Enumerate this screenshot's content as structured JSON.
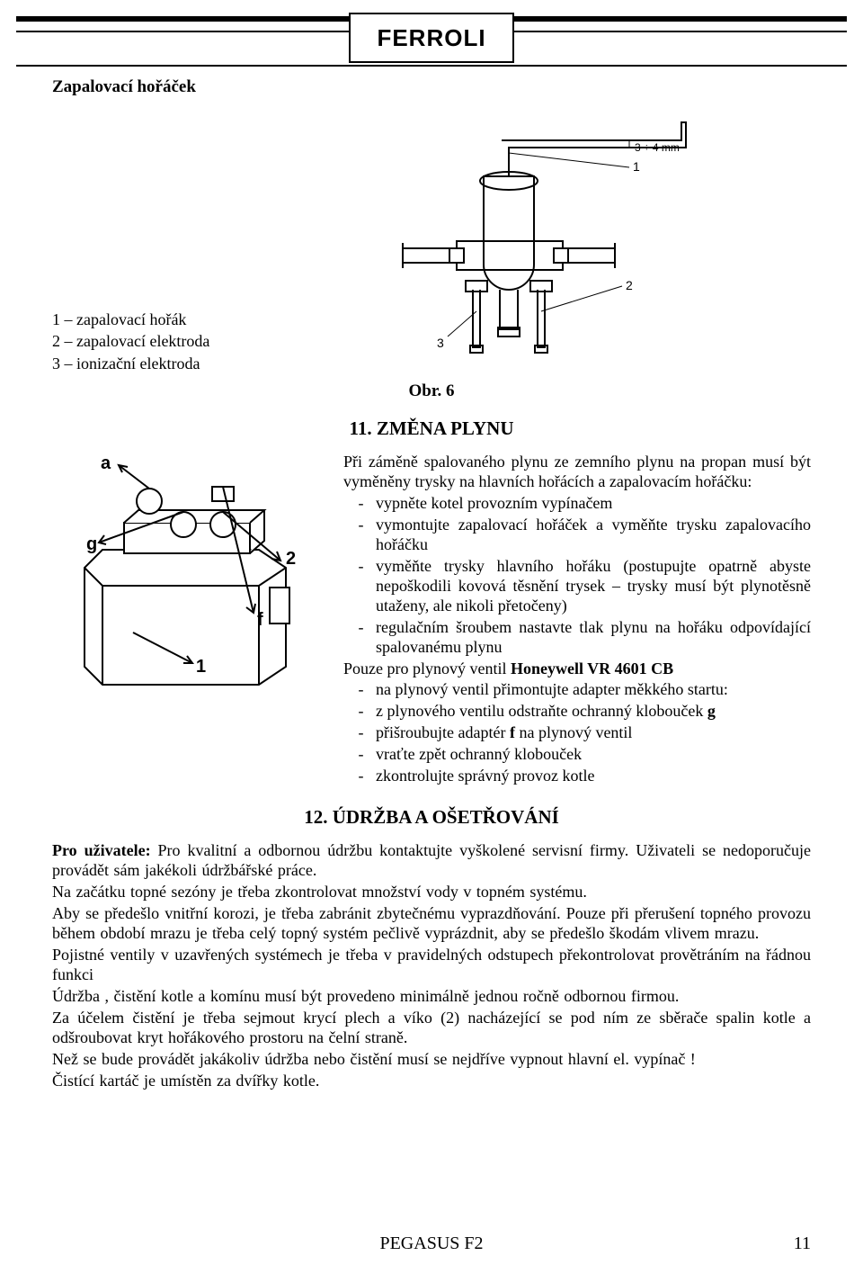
{
  "logo_text": "FERROLI",
  "heading_1": "Zapalovací hořáček",
  "legend_items": [
    "1 – zapalovací hořák",
    "2 – zapalovací elektroda",
    "3 – ionizační elektroda"
  ],
  "burner_diagram": {
    "labels": {
      "dim": "3 ÷ 4 mm",
      "one": "1",
      "two": "2",
      "three": "3"
    },
    "stroke": "#020202"
  },
  "fig_caption": "Obr. 6",
  "section_11": "11. ZMĚNA PLYNU",
  "valve_diagram": {
    "labels": {
      "a": "a",
      "g": "g",
      "two": "2",
      "f": "f",
      "one": "1"
    },
    "stroke": "#020202"
  },
  "section11_intro": "Při záměně spalovaného plynu ze zemního plynu na propan musí být vyměněny trysky na hlavních hořácích a zapalovacím hořáčku:",
  "section11_list1": [
    "vypněte kotel provozním vypínačem",
    "vymontujte zapalovací hořáček a vyměňte trysku zapalovacího hořáčku",
    "vyměňte trysky hlavního hořáku (postupujte opatrně abyste nepoškodili kovová těsnění trysek – trysky musí být plynotěsně utaženy, ale nikoli přetočeny)",
    "regulačním šroubem nastavte tlak plynu na hořáku odpovídající spalovanému plynu"
  ],
  "section11_mid": "Pouze pro plynový ventil <b>Honeywell VR 4601 CB</b>",
  "section11_list2": [
    "na plynový ventil přimontujte adapter měkkého startu:",
    "z plynového ventilu odstraňte ochranný klobouček <b>g</b>",
    "přišroubujte adaptér <b>f</b> na plynový ventil",
    "vraťte zpět ochranný klobouček",
    "zkontrolujte správný provoz kotle"
  ],
  "section_12": "12. ÚDRŽBA A OŠETŘOVÁNÍ",
  "section12_paras": [
    "<b>Pro uživatele:</b> Pro kvalitní a odbornou údržbu kontaktujte vyškolené servisní firmy. Uživateli se nedoporučuje provádět sám jakékoli údržbářské práce.",
    "Na začátku topné sezóny je třeba zkontrolovat množství vody v topném systému.",
    "Aby se předešlo vnitřní korozi, je třeba zabránit zbytečnému vyprazdňování. Pouze při přerušení topného provozu během období mrazu je třeba celý topný systém pečlivě vyprázdnit, aby se předešlo škodám vlivem mrazu.",
    "Pojistné ventily v uzavřených systémech  je  třeba  v   pravidelných  odstupech  překontrolovat provětráním na řádnou funkci",
    "Údržba , čistění kotle a komínu musí být provedeno   minimálně   jednou   ročně odbornou firmou.",
    "Za  účelem   čistění   je třeba sejmout krycí plech a víko (2) nacházející se pod ním ze sběrače spalin kotle a odšroubovat kryt hořákového prostoru na čelní straně.",
    "Než se bude provádět jakákoliv údržba nebo čistění musí se nejdříve vypnout hlavní el. vypínač !",
    "Čistící kartáč je umístěn za dvířky kotle."
  ],
  "footer_model": "PEGASUS F2",
  "page_number": "11"
}
